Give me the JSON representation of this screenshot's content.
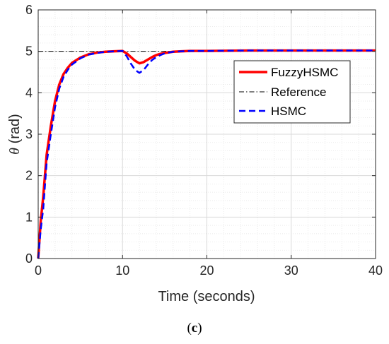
{
  "chart_data": {
    "type": "line",
    "xlabel": "Time (seconds)",
    "ylabel_symbol": "θ",
    "ylabel_unit": " (rad)",
    "xlim": [
      0,
      40
    ],
    "ylim": [
      0,
      6
    ],
    "xticks": [
      0,
      10,
      20,
      30,
      40
    ],
    "yticks": [
      0,
      1,
      2,
      3,
      4,
      5,
      6
    ],
    "grid": "minor-on",
    "legend_position": "right",
    "series": [
      {
        "name": "FuzzyHSMC",
        "color": "#ff0000",
        "style": "solid",
        "x": [
          0,
          0.3,
          0.6,
          1,
          1.5,
          2,
          2.5,
          3,
          3.5,
          4,
          5,
          6,
          7,
          8,
          9,
          10,
          10.5,
          11,
          11.5,
          12,
          12.5,
          13,
          13.5,
          14,
          14.5,
          15,
          16,
          17,
          18,
          20,
          25,
          30,
          35,
          40
        ],
        "y": [
          0,
          0.9,
          1.5,
          2.5,
          3.2,
          3.8,
          4.2,
          4.45,
          4.6,
          4.72,
          4.85,
          4.93,
          4.97,
          4.99,
          5.0,
          5.01,
          4.95,
          4.86,
          4.77,
          4.71,
          4.74,
          4.8,
          4.86,
          4.91,
          4.94,
          4.96,
          4.99,
          5.0,
          5.01,
          5.01,
          5.02,
          5.02,
          5.02,
          5.02
        ]
      },
      {
        "name": "Reference",
        "color": "#000000",
        "style": "dashdot",
        "x": [
          0,
          40
        ],
        "y": [
          5,
          5
        ]
      },
      {
        "name": "HSMC",
        "color": "#0000ff",
        "style": "dashed",
        "x": [
          0,
          0.3,
          0.6,
          1,
          1.5,
          2,
          2.5,
          3,
          3.5,
          4,
          5,
          6,
          7,
          8,
          9,
          10,
          10.5,
          11,
          11.5,
          12,
          12.5,
          13,
          13.5,
          14,
          14.5,
          15,
          16,
          17,
          18,
          20,
          25,
          30,
          35,
          40
        ],
        "y": [
          0,
          0.7,
          1.2,
          2.3,
          3.0,
          3.65,
          4.1,
          4.38,
          4.55,
          4.68,
          4.83,
          4.92,
          4.96,
          4.99,
          5.0,
          5.01,
          4.88,
          4.7,
          4.55,
          4.48,
          4.55,
          4.68,
          4.79,
          4.86,
          4.91,
          4.95,
          4.99,
          5.0,
          5.01,
          5.01,
          5.02,
          5.02,
          5.02,
          5.02
        ]
      }
    ]
  },
  "caption": {
    "open": "(",
    "letter": "c",
    "close": ")"
  }
}
